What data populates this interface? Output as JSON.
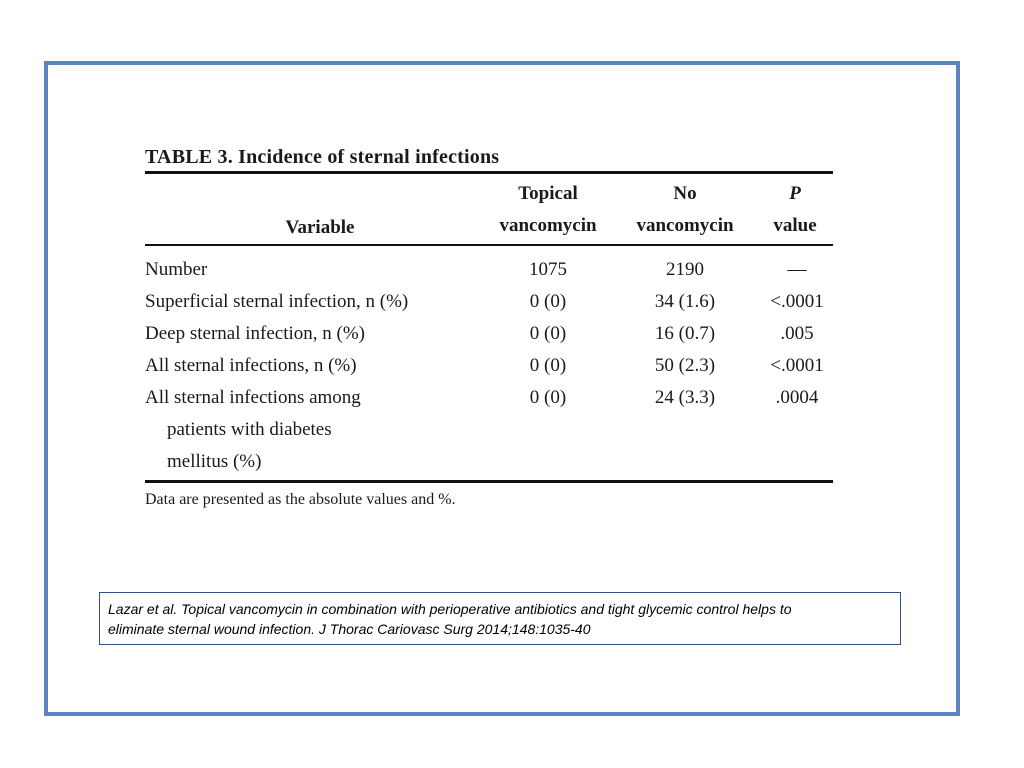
{
  "table": {
    "title": "TABLE 3. Incidence of sternal infections",
    "headers": {
      "variable": "Variable",
      "topical_line1": "Topical",
      "topical_line2": "vancomycin",
      "novanc_line1": "No",
      "novanc_line2": "vancomycin",
      "pval_line1": "P",
      "pval_line2": "value"
    },
    "rows": [
      {
        "variable": "Number",
        "topical": "1075",
        "no_vancomycin": "2190",
        "p_value": "—"
      },
      {
        "variable": "Superficial sternal infection, n (%)",
        "topical": "0 (0)",
        "no_vancomycin": "34 (1.6)",
        "p_value": "<.0001"
      },
      {
        "variable": "Deep sternal infection, n (%)",
        "topical": "0 (0)",
        "no_vancomycin": "16 (0.7)",
        "p_value": ".005"
      },
      {
        "variable": "All sternal infections, n (%)",
        "topical": "0 (0)",
        "no_vancomycin": "50 (2.3)",
        "p_value": "<.0001"
      },
      {
        "variable_line1": "All sternal infections among",
        "variable_line2": "patients with diabetes",
        "variable_line3": "mellitus (%)",
        "topical": "0 (0)",
        "no_vancomycin": "24 (3.3)",
        "p_value": ".0004"
      }
    ],
    "footnote": "Data are presented as the absolute values and %."
  },
  "citation": {
    "line1": "Lazar et al. Topical vancomycin in combination with perioperative antibiotics and tight glycemic control helps to",
    "line2": "eliminate sternal wound infection. J Thorac Cariovasc Surg 2014;148:1035-40"
  },
  "colors": {
    "frame": "#5b84c0",
    "citation_border": "#2f4f8f"
  }
}
